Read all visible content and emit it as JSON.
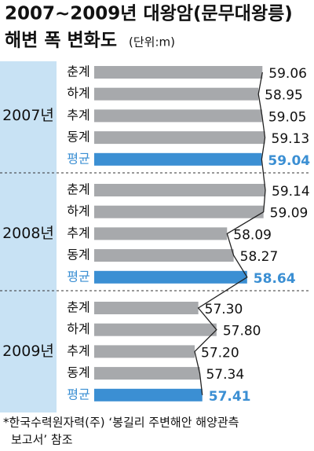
{
  "chart_data": {
    "type": "bar",
    "title": "2007~2009년 대왕암(문무대왕릉)",
    "subtitle": "해변 폭 변화도",
    "unit": "(단위:m)",
    "categories": [
      "춘계",
      "하계",
      "추계",
      "동계",
      "평균"
    ],
    "series": [
      {
        "name": "2007년",
        "values": [
          59.06,
          58.95,
          59.05,
          59.13,
          59.04
        ]
      },
      {
        "name": "2008년",
        "values": [
          59.14,
          59.09,
          58.09,
          58.27,
          58.64
        ]
      },
      {
        "name": "2009년",
        "values": [
          57.3,
          57.8,
          57.2,
          57.34,
          57.41
        ]
      }
    ],
    "value_labels": [
      [
        "59.06",
        "58.95",
        "59.05",
        "59.13",
        "59.04"
      ],
      [
        "59.14",
        "59.09",
        "58.09",
        "58.27",
        "58.64"
      ],
      [
        "57.30",
        "57.80",
        "57.20",
        "57.34",
        "57.41"
      ]
    ],
    "color": "#a7a9ac",
    "highlight_color": "#3b8fd3",
    "panel_color": "#c8e2f4",
    "note": [
      "*한국수력원자력(주) ‘봉길리 주변해안 해양관측",
      "보고서’ 참조"
    ]
  }
}
